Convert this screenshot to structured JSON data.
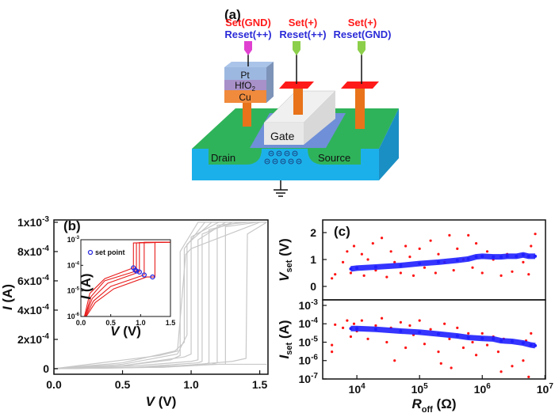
{
  "diagram": {
    "panel_label": "(a)",
    "terminals": [
      {
        "set": "Set(GND)",
        "reset": "Reset(++)"
      },
      {
        "set": "Set(+)",
        "reset": "Reset(++)"
      },
      {
        "set": "Set(+)",
        "reset": "Reset(GND)"
      }
    ],
    "layers": {
      "top": "Pt",
      "middle_base": "HfO",
      "middle_sub": "2",
      "bottom": "Cu"
    },
    "gate": "Gate",
    "drain": "Drain",
    "source": "Source",
    "set_color": "#ff1a1a",
    "reset_color": "#2b2bd8"
  },
  "chart_data": [
    {
      "type": "line",
      "panel_label": "(b)",
      "xlabel": {
        "var": "V",
        "unit": " (V)"
      },
      "ylabel": {
        "var": "I",
        "unit": " (A)"
      },
      "xlim": [
        0,
        1.56
      ],
      "ylim": [
        -3.8e-05,
        0.001016
      ],
      "xticks": [
        {
          "v": 0,
          "t": "0.0"
        },
        {
          "v": 0.5,
          "t": "0.5"
        },
        {
          "v": 1.0,
          "t": "1.0"
        },
        {
          "v": 1.5,
          "t": "1.5"
        }
      ],
      "yticks": [
        {
          "v": 0,
          "m": "0",
          "e": ""
        },
        {
          "v": 0.0002,
          "m": "2x10",
          "e": "-4"
        },
        {
          "v": 0.0004,
          "m": "4x10",
          "e": "-4"
        },
        {
          "v": 0.0006,
          "m": "6x10",
          "e": "-4"
        },
        {
          "v": 0.0008,
          "m": "8x10",
          "e": "-4"
        },
        {
          "v": 0.001,
          "m": "1x10",
          "e": "-3"
        }
      ],
      "color": "#c8c8c8",
      "curves": [
        [
          [
            0,
            0
          ],
          [
            0.5,
            2e-05
          ],
          [
            0.85,
            6e-05
          ],
          [
            0.92,
            9e-05
          ],
          [
            0.92,
            0.0008
          ],
          [
            1.05,
            0.001
          ],
          [
            1.55,
            0.001
          ]
        ],
        [
          [
            0,
            0
          ],
          [
            0.5,
            4e-05
          ],
          [
            0.88,
            0.00012
          ],
          [
            0.95,
            0.00018
          ],
          [
            0.95,
            0.00082
          ],
          [
            1.1,
            0.001
          ]
        ],
        [
          [
            0,
            0
          ],
          [
            0.5,
            3e-05
          ],
          [
            0.9,
            0.0001
          ],
          [
            0.97,
            0.00023
          ],
          [
            0.97,
            0.00085
          ],
          [
            1.15,
            0.001
          ]
        ],
        [
          [
            0,
            0
          ],
          [
            0.5,
            2e-05
          ],
          [
            0.95,
            8e-05
          ],
          [
            1.0,
            0.0001
          ],
          [
            1.0,
            0.0009
          ],
          [
            1.2,
            0.001
          ]
        ],
        [
          [
            0,
            0
          ],
          [
            0.6,
            2e-05
          ],
          [
            1.0,
            5e-05
          ],
          [
            1.05,
            6e-05
          ],
          [
            1.05,
            0.00088
          ],
          [
            1.25,
            0.001
          ]
        ],
        [
          [
            0,
            0
          ],
          [
            0.6,
            1e-05
          ],
          [
            1.05,
            4e-05
          ],
          [
            1.08,
            5e-05
          ],
          [
            1.08,
            0.00092
          ],
          [
            1.3,
            0.001
          ]
        ],
        [
          [
            0,
            0
          ],
          [
            0.7,
            1e-05
          ],
          [
            1.1,
            3e-05
          ],
          [
            1.13,
            4e-05
          ],
          [
            1.13,
            0.00095
          ],
          [
            1.35,
            0.001
          ]
        ],
        [
          [
            0,
            0
          ],
          [
            0.7,
            1e-05
          ],
          [
            1.15,
            3e-05
          ],
          [
            1.19,
            4e-05
          ],
          [
            1.19,
            0.00098
          ],
          [
            1.42,
            0.001
          ]
        ],
        [
          [
            0,
            0
          ],
          [
            0.8,
            1e-05
          ],
          [
            1.2,
            3e-05
          ],
          [
            1.25,
            3e-05
          ],
          [
            1.25,
            0.00097
          ],
          [
            1.48,
            0.001
          ]
        ],
        [
          [
            0,
            0
          ],
          [
            0.8,
            1e-05
          ],
          [
            1.3,
            5e-05
          ],
          [
            1.4,
            7e-05
          ],
          [
            1.41,
            0.00092
          ],
          [
            1.55,
            0.001
          ]
        ],
        [
          [
            0,
            0
          ],
          [
            0.77,
            9e-05
          ],
          [
            0.9,
            0.00012
          ],
          [
            0.96,
            0.00078
          ],
          [
            1.0,
            0.00082
          ],
          [
            1.5,
            0.001
          ]
        ],
        [
          [
            0,
            0
          ],
          [
            0.5,
            5e-06
          ],
          [
            0.9,
            2e-05
          ],
          [
            1.2,
            3e-05
          ],
          [
            1.55,
            3e-05
          ]
        ]
      ],
      "inset": {
        "type": "line",
        "xlabel": {
          "var": "V",
          "unit": " (V)"
        },
        "ylabel": {
          "var": "I",
          "unit": " (A)"
        },
        "xlim": [
          0,
          1.5
        ],
        "ylim": [
          1e-06,
          0.001
        ],
        "yscale": "log",
        "xticks": [
          {
            "v": 0,
            "t": "0.0"
          },
          {
            "v": 0.5,
            "t": "0.5"
          },
          {
            "v": 1.0,
            "t": "1.0"
          },
          {
            "v": 1.5,
            "t": "1.5"
          }
        ],
        "yticks": [
          {
            "v": 1e-06,
            "m": "10",
            "e": "-6"
          },
          {
            "v": 1e-05,
            "m": "10",
            "e": "-5"
          },
          {
            "v": 0.0001,
            "m": "10",
            "e": "-4"
          },
          {
            "v": 0.001,
            "m": "10",
            "e": "-3"
          }
        ],
        "legend": "set point",
        "curve_color": "#e81c1c",
        "marker_color": "#2b2be0",
        "set_points": [
          [
            0.88,
            8e-05
          ],
          [
            0.91,
            6.5e-05
          ],
          [
            0.98,
            5.5e-05
          ],
          [
            1.06,
            4.2e-05
          ],
          [
            1.2,
            3.5e-05
          ],
          [
            0.93,
            6e-05
          ]
        ],
        "curves": [
          [
            [
              0.06,
              1e-06
            ],
            [
              0.15,
              8e-06
            ],
            [
              0.4,
              3e-05
            ],
            [
              0.88,
              8e-05
            ],
            [
              0.88,
              0.00075
            ],
            [
              1.5,
              0.0008
            ]
          ],
          [
            [
              0.07,
              1e-06
            ],
            [
              0.17,
              6e-06
            ],
            [
              0.4,
              2.5e-05
            ],
            [
              0.93,
              6e-05
            ],
            [
              0.93,
              0.00075
            ],
            [
              1.5,
              0.0008
            ]
          ],
          [
            [
              0.07,
              1e-06
            ],
            [
              0.19,
              5e-06
            ],
            [
              0.45,
              2e-05
            ],
            [
              0.98,
              5.5e-05
            ],
            [
              0.98,
              0.00078
            ],
            [
              1.5,
              0.0008
            ]
          ],
          [
            [
              0.08,
              1e-06
            ],
            [
              0.21,
              4e-06
            ],
            [
              0.5,
              1.5e-05
            ],
            [
              1.06,
              4.2e-05
            ],
            [
              1.06,
              0.0008
            ],
            [
              1.5,
              0.0008
            ]
          ],
          [
            [
              0.09,
              1e-06
            ],
            [
              0.24,
              3.5e-06
            ],
            [
              0.55,
              1.2e-05
            ],
            [
              1.1,
              3.5e-05
            ],
            [
              1.24,
              3.5e-05
            ],
            [
              1.24,
              0.0008
            ],
            [
              1.5,
              0.0008
            ]
          ]
        ]
      }
    },
    {
      "type": "scatter",
      "panel_label": "(c)",
      "xlabel": {
        "var": "R",
        "sub": "off",
        "unit": " (Ω)"
      },
      "xscale": "log",
      "xlim": [
        2850,
        10200000
      ],
      "xticks": [
        {
          "v": 10000,
          "m": "10",
          "e": "4"
        },
        {
          "v": 100000,
          "m": "10",
          "e": "5"
        },
        {
          "v": 1000000,
          "m": "10",
          "e": "6"
        },
        {
          "v": 10000000,
          "m": "10",
          "e": "7"
        }
      ],
      "red_color": "#ff1414",
      "blue_color": "#1f1fff",
      "top": {
        "ylabel": {
          "var": "V",
          "sub": "set",
          "unit": " (V)"
        },
        "ylim": [
          -0.5,
          2.47
        ],
        "yticks": [
          {
            "v": 0,
            "t": "0"
          },
          {
            "v": 1,
            "t": "1"
          },
          {
            "v": 2,
            "t": "2"
          }
        ],
        "red_points": [
          [
            4000,
            0.3
          ],
          [
            4500,
            0.45
          ],
          [
            6000,
            0.9
          ],
          [
            7000,
            1.3
          ],
          [
            8000,
            0.5
          ],
          [
            9000,
            1.5
          ],
          [
            10000,
            0.7
          ],
          [
            12000,
            1.2
          ],
          [
            13000,
            0.4
          ],
          [
            15000,
            1.0
          ],
          [
            18000,
            1.6
          ],
          [
            20000,
            0.6
          ],
          [
            25000,
            1.8
          ],
          [
            30000,
            0.35
          ],
          [
            35000,
            1.3
          ],
          [
            40000,
            0.9
          ],
          [
            50000,
            0.5
          ],
          [
            60000,
            1.5
          ],
          [
            70000,
            1.1
          ],
          [
            80000,
            0.4
          ],
          [
            100000,
            1.4
          ],
          [
            120000,
            0.7
          ],
          [
            150000,
            1.7
          ],
          [
            180000,
            0.5
          ],
          [
            200000,
            1.2
          ],
          [
            250000,
            0.9
          ],
          [
            300000,
            1.9
          ],
          [
            350000,
            0.6
          ],
          [
            400000,
            1.4
          ],
          [
            500000,
            1.0
          ],
          [
            600000,
            1.9
          ],
          [
            700000,
            0.7
          ],
          [
            800000,
            1.6
          ],
          [
            1000000,
            0.5
          ],
          [
            1200000,
            1.3
          ],
          [
            1500000,
            1.0
          ],
          [
            2000000,
            0.4
          ],
          [
            2500000,
            1.2
          ],
          [
            3000000,
            0.55
          ],
          [
            4500000,
            0.9
          ],
          [
            5500000,
            0.45
          ],
          [
            6000000,
            1.5
          ],
          [
            7000000,
            1.95
          ]
        ],
        "blue_points": [
          [
            8000,
            0.65
          ],
          [
            10000,
            0.68
          ],
          [
            20000,
            0.72
          ],
          [
            50000,
            0.78
          ],
          [
            100000,
            0.85
          ],
          [
            200000,
            0.9
          ],
          [
            400000,
            0.97
          ],
          [
            600000,
            1.02
          ],
          [
            800000,
            1.1
          ],
          [
            1000000,
            1.12
          ],
          [
            1500000,
            1.1
          ],
          [
            2000000,
            1.1
          ],
          [
            2500000,
            1.12
          ],
          [
            3500000,
            1.12
          ],
          [
            4500000,
            1.17
          ],
          [
            5500000,
            1.12
          ],
          [
            7000000,
            1.12
          ]
        ]
      },
      "bottom": {
        "ylabel": {
          "var": "I",
          "sub": "set",
          "unit": " (A)"
        },
        "yscale": "log",
        "ylim": [
          1e-07,
          0.002
        ],
        "yticks": [
          {
            "v": 1e-07,
            "m": "10",
            "e": "-7"
          },
          {
            "v": 1e-06,
            "m": "10",
            "e": "-6"
          },
          {
            "v": 1e-05,
            "m": "10",
            "e": "-5"
          },
          {
            "v": 0.0001,
            "m": "10",
            "e": "-4"
          },
          {
            "v": 0.001,
            "m": "10",
            "e": "-3"
          }
        ],
        "red_points": [
          [
            4000,
            7e-06
          ],
          [
            4000,
            3e-06
          ],
          [
            4500,
            9e-05
          ],
          [
            6000,
            6e-05
          ],
          [
            7000,
            0.00015
          ],
          [
            8000,
            2e-05
          ],
          [
            9000,
            0.0001
          ],
          [
            10000,
            4e-05
          ],
          [
            12000,
            0.00015
          ],
          [
            15000,
            1.5e-05
          ],
          [
            20000,
            8e-05
          ],
          [
            25000,
            0.0002
          ],
          [
            30000,
            1e-05
          ],
          [
            35000,
            6e-05
          ],
          [
            40000,
            1e-06
          ],
          [
            50000,
            0.00012
          ],
          [
            60000,
            5e-06
          ],
          [
            70000,
            8e-05
          ],
          [
            80000,
            2.5e-05
          ],
          [
            100000,
            0.00015
          ],
          [
            120000,
            8e-06
          ],
          [
            150000,
            5e-05
          ],
          [
            200000,
            3e-06
          ],
          [
            220000,
            7e-07
          ],
          [
            250000,
            0.0001
          ],
          [
            300000,
            1.5e-05
          ],
          [
            320000,
            4e-07
          ],
          [
            400000,
            6e-05
          ],
          [
            500000,
            5e-06
          ],
          [
            600000,
            3e-05
          ],
          [
            700000,
            1e-05
          ],
          [
            800000,
            2e-06
          ],
          [
            1000000,
            3e-05
          ],
          [
            1200000,
            7e-06
          ],
          [
            1500000,
            2e-05
          ],
          [
            1800000,
            3e-06
          ],
          [
            2000000,
            2.5e-07
          ],
          [
            2200000,
            1.5e-05
          ],
          [
            3000000,
            5e-07
          ],
          [
            4500000,
            1e-06
          ],
          [
            5000000,
            1.2e-05
          ],
          [
            5500000,
            1.3e-07
          ],
          [
            6000000,
            3e-05
          ]
        ],
        "blue_points": [
          [
            8000,
            5.5e-05
          ],
          [
            10000,
            5.5e-05
          ],
          [
            20000,
            5e-05
          ],
          [
            50000,
            4e-05
          ],
          [
            100000,
            3.5e-05
          ],
          [
            200000,
            2.8e-05
          ],
          [
            400000,
            2.2e-05
          ],
          [
            600000,
            1.8e-05
          ],
          [
            1000000,
            1.6e-05
          ],
          [
            1500000,
            1.5e-05
          ],
          [
            2000000,
            1.2e-05
          ],
          [
            3000000,
            1.1e-05
          ],
          [
            4500000,
            9e-06
          ],
          [
            6000000,
            7e-06
          ],
          [
            7000000,
            6.5e-06
          ]
        ]
      }
    }
  ]
}
